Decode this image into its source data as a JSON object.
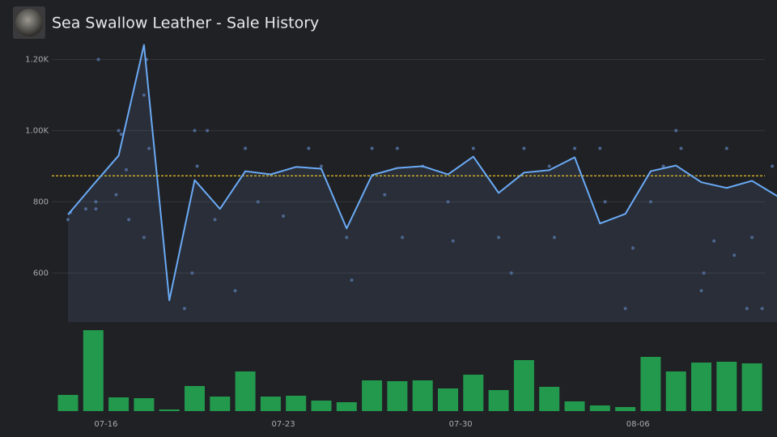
{
  "chart_data": {
    "type": "line",
    "title": "Sea Swallow Leather - Sale History",
    "xlim": [
      0,
      28
    ],
    "xticks": [
      {
        "value": 1.5,
        "label": "07-16"
      },
      {
        "value": 8.5,
        "label": "07-23"
      },
      {
        "value": 15.5,
        "label": "07-30"
      },
      {
        "value": 22.5,
        "label": "08-06"
      }
    ],
    "ylim": [
      462,
      1250
    ],
    "yticks": [
      600,
      800,
      {
        "value": 1000,
        "label": "1.00K"
      },
      {
        "value": 1200,
        "label": "1.20K"
      }
    ],
    "grid": true,
    "series": [
      {
        "color": "#6aaaf5",
        "values": [
          764,
          848,
          930,
          1241,
          523,
          861,
          780,
          886,
          877,
          898,
          893,
          725,
          875,
          895,
          900,
          877,
          927,
          825,
          882,
          889,
          925,
          739,
          766,
          886,
          902,
          855,
          839,
          859,
          816
        ]
      }
    ],
    "average": 873,
    "average_color": "#e6c229",
    "sales": {
      "color": "#4d6690",
      "x": [
        0,
        0.1,
        0.7,
        1.1,
        1.2,
        1.1,
        1.9,
        2,
        2.1,
        2.3,
        2.4,
        3.2,
        3,
        3.1,
        3,
        4.6,
        4.9,
        5,
        5.1,
        5.5,
        5.8,
        6.6,
        7,
        7.5,
        8.5,
        9.5,
        10,
        11,
        11.2,
        12,
        12.5,
        13,
        13.2,
        14,
        15,
        15.2,
        16,
        17,
        17.5,
        18,
        19,
        19.2,
        20,
        21,
        21.2,
        22,
        22.3,
        23,
        23.5,
        24,
        24.2,
        25,
        25.1,
        25.5,
        26,
        26.3,
        26.8,
        27,
        27.8,
        27.4
      ],
      "y": [
        750,
        770,
        780,
        780,
        1200,
        800,
        820,
        1000,
        990,
        890,
        750,
        950,
        1100,
        1200,
        700,
        500,
        600,
        1000,
        900,
        1000,
        750,
        550,
        950,
        800,
        760,
        950,
        900,
        700,
        580,
        950,
        820,
        950,
        700,
        900,
        800,
        690,
        950,
        700,
        600,
        950,
        900,
        700,
        950,
        950,
        800,
        500,
        670,
        800,
        900,
        1000,
        950,
        550,
        600,
        690,
        950,
        650,
        500,
        700,
        900,
        500
      ]
    },
    "volume": {
      "color": "#22994d",
      "values": [
        20,
        100,
        17,
        16,
        2,
        31,
        18,
        49,
        18,
        19,
        13,
        11,
        38,
        37,
        38,
        28,
        45,
        26,
        63,
        30,
        12,
        7,
        5,
        67,
        49,
        60,
        61,
        59
      ]
    }
  }
}
